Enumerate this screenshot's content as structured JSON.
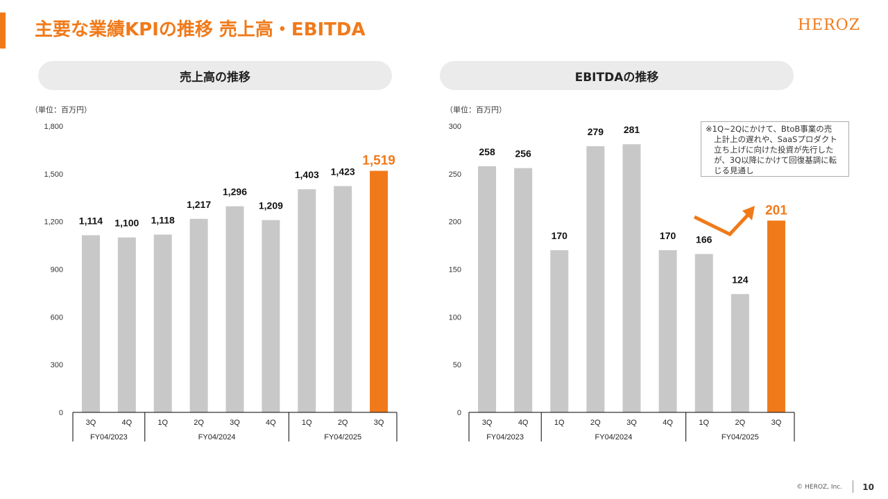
{
  "header": {
    "title": "主要な業績KPIの推移 売上高・EBITDA",
    "logo_text": "HEROZ",
    "accent_color": "#F07A1A"
  },
  "footer": {
    "copyright": "© HEROZ, Inc.",
    "page_number": "10"
  },
  "colors": {
    "bar_default": "#C8C8C8",
    "bar_highlight": "#F07A1A"
  },
  "sales": {
    "section_title": "売上高の推移",
    "unit": "（単位：百万円）"
  },
  "ebitda": {
    "section_title": "EBITDAの推移",
    "unit": "（単位：百万円）",
    "note_lines": [
      "※1Q~2Qにかけて、BtoB事業の売",
      "上計上の遅れや、SaaSプロダクト",
      "立ち上げに向けた投資が先行した",
      "が、3Q以降にかけて回復基調に転",
      "じる見通し"
    ]
  },
  "chart_data": [
    {
      "type": "bar",
      "title": "売上高の推移",
      "categories": [
        "3Q",
        "4Q",
        "1Q",
        "2Q",
        "3Q",
        "4Q",
        "1Q",
        "2Q",
        "3Q"
      ],
      "groups": [
        {
          "label": "FY04/2023",
          "count": 2
        },
        {
          "label": "FY04/2024",
          "count": 4
        },
        {
          "label": "FY04/2025",
          "count": 3
        }
      ],
      "values": [
        1114,
        1100,
        1118,
        1217,
        1296,
        1209,
        1403,
        1423,
        1519
      ],
      "value_labels": [
        "1,114",
        "1,100",
        "1,118",
        "1,217",
        "1,296",
        "1,209",
        "1,403",
        "1,423",
        "1,519"
      ],
      "highlight_index": 8,
      "yticks": [
        "0",
        "300",
        "600",
        "900",
        "1,200",
        "1,500",
        "1,800"
      ],
      "ylim": [
        0,
        1800
      ],
      "grid": false
    },
    {
      "type": "bar",
      "title": "EBITDAの推移",
      "categories": [
        "3Q",
        "4Q",
        "1Q",
        "2Q",
        "3Q",
        "4Q",
        "1Q",
        "2Q",
        "3Q"
      ],
      "groups": [
        {
          "label": "FY04/2023",
          "count": 2
        },
        {
          "label": "FY04/2024",
          "count": 4
        },
        {
          "label": "FY04/2025",
          "count": 3
        }
      ],
      "values": [
        258,
        256,
        170,
        279,
        281,
        170,
        166,
        124,
        201
      ],
      "value_labels": [
        "258",
        "256",
        "170",
        "279",
        "281",
        "170",
        "166",
        "124",
        "201"
      ],
      "highlight_index": 8,
      "yticks": [
        "0",
        "50",
        "100",
        "150",
        "200",
        "250",
        "300"
      ],
      "ylim": [
        0,
        300
      ],
      "grid": false
    }
  ]
}
